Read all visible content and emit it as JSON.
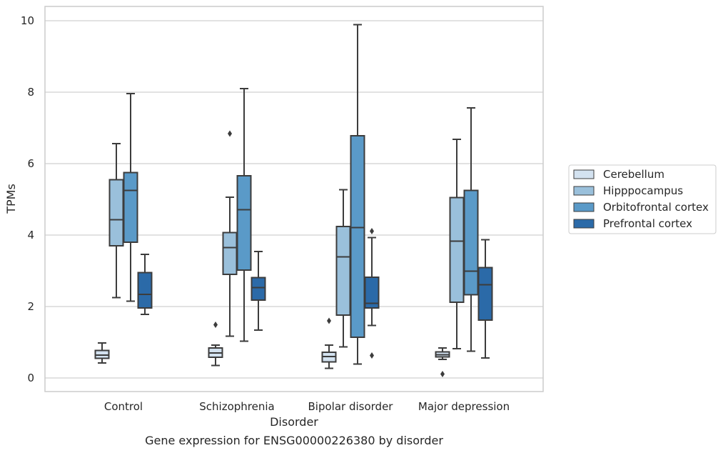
{
  "chart_data": {
    "type": "box",
    "title": "Gene expression for ENSG00000226380 by disorder",
    "xlabel": "Disorder",
    "ylabel": "TPMs",
    "ylim": [
      -0.35,
      10.4
    ],
    "yticks": [
      0,
      2,
      4,
      6,
      8,
      10
    ],
    "grid": true,
    "legend_position": "right",
    "categories": [
      "Control",
      "Schizophrenia",
      "Bipolar disorder",
      "Major depression"
    ],
    "series": [
      {
        "name": "Cerebellum",
        "color": "#d3e2f0",
        "boxes": [
          {
            "whislo": 0.42,
            "q1": 0.55,
            "med": 0.64,
            "q3": 0.77,
            "whishi": 0.98,
            "fliers": []
          },
          {
            "whislo": 0.35,
            "q1": 0.58,
            "med": 0.7,
            "q3": 0.84,
            "whishi": 0.92,
            "fliers": [
              1.49
            ]
          },
          {
            "whislo": 0.27,
            "q1": 0.45,
            "med": 0.6,
            "q3": 0.72,
            "whishi": 0.92,
            "fliers": [
              1.6
            ]
          },
          {
            "whislo": 0.52,
            "q1": 0.59,
            "med": 0.65,
            "q3": 0.73,
            "whishi": 0.84,
            "fliers": [
              0.11
            ]
          }
        ]
      },
      {
        "name": "Hipppocampus",
        "color": "#9ac0db",
        "boxes": [
          {
            "whislo": 2.25,
            "q1": 3.7,
            "med": 4.43,
            "q3": 5.55,
            "whishi": 6.56,
            "fliers": []
          },
          {
            "whislo": 1.17,
            "q1": 2.9,
            "med": 3.65,
            "q3": 4.07,
            "whishi": 5.06,
            "fliers": [
              6.84
            ]
          },
          {
            "whislo": 0.87,
            "q1": 1.76,
            "med": 3.39,
            "q3": 4.24,
            "whishi": 5.27,
            "fliers": []
          },
          {
            "whislo": 0.82,
            "q1": 2.12,
            "med": 3.83,
            "q3": 5.05,
            "whishi": 6.68,
            "fliers": []
          }
        ]
      },
      {
        "name": "Orbitofrontal cortex",
        "color": "#5a9ac8",
        "boxes": [
          {
            "whislo": 2.15,
            "q1": 3.8,
            "med": 5.25,
            "q3": 5.75,
            "whishi": 7.96,
            "fliers": []
          },
          {
            "whislo": 1.03,
            "q1": 3.02,
            "med": 4.71,
            "q3": 5.66,
            "whishi": 8.1,
            "fliers": []
          },
          {
            "whislo": 0.39,
            "q1": 1.14,
            "med": 4.21,
            "q3": 6.78,
            "whishi": 9.89,
            "fliers": []
          },
          {
            "whislo": 0.75,
            "q1": 2.33,
            "med": 2.99,
            "q3": 5.25,
            "whishi": 7.56,
            "fliers": []
          }
        ]
      },
      {
        "name": "Prefrontal cortex",
        "color": "#2b6aa8",
        "boxes": [
          {
            "whislo": 1.78,
            "q1": 1.96,
            "med": 2.34,
            "q3": 2.95,
            "whishi": 3.46,
            "fliers": []
          },
          {
            "whislo": 1.34,
            "q1": 2.18,
            "med": 2.53,
            "q3": 2.81,
            "whishi": 3.54,
            "fliers": []
          },
          {
            "whislo": 1.47,
            "q1": 1.96,
            "med": 2.09,
            "q3": 2.82,
            "whishi": 3.93,
            "fliers": [
              4.11,
              0.63
            ]
          },
          {
            "whislo": 0.56,
            "q1": 1.62,
            "med": 2.61,
            "q3": 3.09,
            "whishi": 3.87,
            "fliers": []
          }
        ]
      }
    ]
  }
}
